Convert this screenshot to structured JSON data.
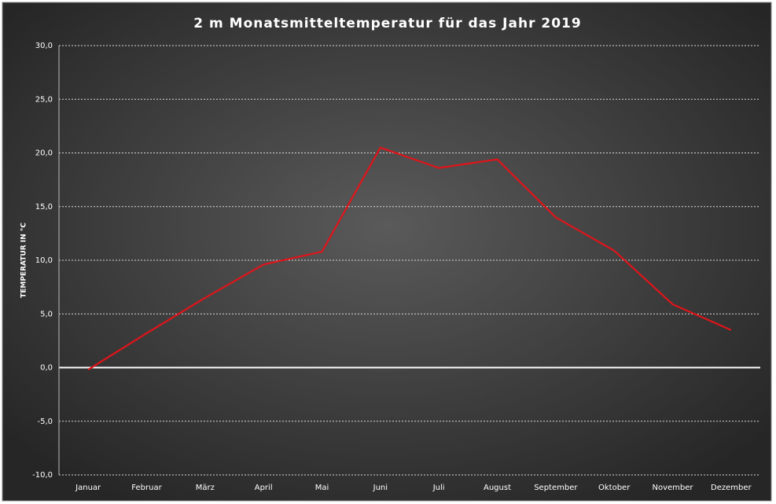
{
  "chart_data": {
    "type": "line",
    "title": "2 m Monatsmitteltemperatur  für das Jahr 2019",
    "y_label": "TEMPERATUR IN °C",
    "categories": [
      "Januar",
      "Februar",
      "März",
      "April",
      "Mai",
      "Juni",
      "Juli",
      "August",
      "September",
      "Oktober",
      "November",
      "Dezember"
    ],
    "series": [
      {
        "color": "#e0141a",
        "values": [
          -0.2,
          3.2,
          6.5,
          9.6,
          10.8,
          20.5,
          18.6,
          19.4,
          14.0,
          10.9,
          5.9,
          3.5
        ]
      }
    ],
    "ylim": [
      -10,
      30
    ],
    "yticks": [
      {
        "value": -10,
        "label": "-10,0"
      },
      {
        "value": -5,
        "label": "-5,0"
      },
      {
        "value": 0,
        "label": "0,0"
      },
      {
        "value": 5,
        "label": "5,0"
      },
      {
        "value": 10,
        "label": "10,0"
      },
      {
        "value": 15,
        "label": "15,0"
      },
      {
        "value": 20,
        "label": "20,0"
      },
      {
        "value": 25,
        "label": "25,0"
      },
      {
        "value": 30,
        "label": "30,0"
      }
    ],
    "grid": true
  }
}
